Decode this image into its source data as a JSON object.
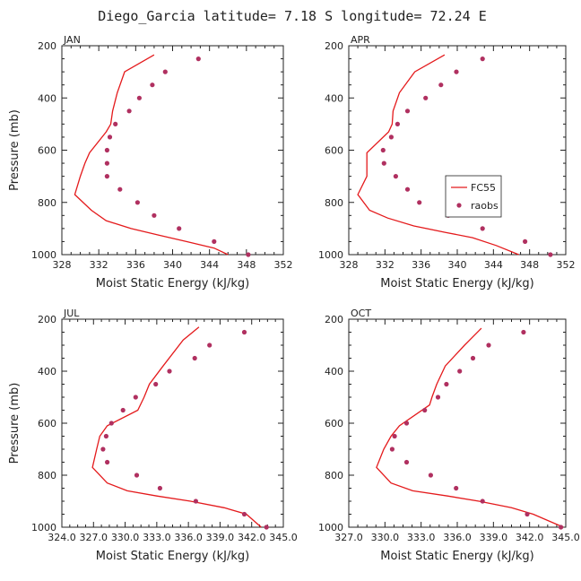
{
  "figure": {
    "title": "Diego_Garcia  latitude= 7.18 S longitude= 72.24 E",
    "xlabel": "Moist Static Energy (kJ/kg)",
    "ylabel": "Pressure (mb)",
    "colors": {
      "fc55": "#e41a1c",
      "raobs": "#b03060",
      "axis": "#222222"
    }
  },
  "legend": {
    "fc55": "FC55",
    "raobs": "raobs"
  },
  "chart_data": [
    {
      "type": "line",
      "month": "JAN",
      "xlim": [
        328,
        352
      ],
      "xticks": [
        328,
        332,
        336,
        340,
        344,
        348,
        352
      ],
      "xtick_labels": [
        "328",
        "332",
        "336",
        "340",
        "344",
        "348",
        "352"
      ],
      "ylim": [
        1000,
        200
      ],
      "yticks": [
        200,
        400,
        600,
        800,
        1000
      ],
      "series": [
        {
          "name": "FC55",
          "style": "line",
          "x": [
            338.0,
            334.8,
            334.0,
            333.5,
            333.3,
            332.8,
            331.0,
            330.5,
            330.0,
            329.4,
            331.2,
            332.8,
            335.5,
            338.5,
            341.5,
            344.5,
            346.0
          ],
          "y": [
            235,
            300,
            380,
            450,
            500,
            530,
            610,
            650,
            700,
            770,
            830,
            870,
            900,
            925,
            950,
            975,
            1000
          ]
        },
        {
          "name": "raobs",
          "style": "marker",
          "x": [
            342.8,
            339.2,
            337.8,
            336.4,
            335.3,
            333.8,
            333.2,
            332.9,
            332.9,
            332.9,
            334.3,
            336.2,
            338.0,
            340.7,
            344.5,
            348.2
          ],
          "y": [
            250,
            300,
            350,
            400,
            450,
            500,
            550,
            600,
            650,
            700,
            750,
            800,
            850,
            900,
            950,
            1000
          ]
        }
      ]
    },
    {
      "type": "line",
      "month": "APR",
      "show_legend": true,
      "xlim": [
        328,
        352
      ],
      "xticks": [
        328,
        332,
        336,
        340,
        344,
        348,
        352
      ],
      "xtick_labels": [
        "328",
        "332",
        "336",
        "340",
        "344",
        "348",
        "352"
      ],
      "ylim": [
        1000,
        200
      ],
      "yticks": [
        200,
        400,
        600,
        800,
        1000
      ],
      "series": [
        {
          "name": "FC55",
          "style": "line",
          "x": [
            338.6,
            335.3,
            333.6,
            332.9,
            332.8,
            332.4,
            330.0,
            330.0,
            330.0,
            329.0,
            330.3,
            332.3,
            335.2,
            338.7,
            341.7,
            344.3,
            346.8
          ],
          "y": [
            235,
            300,
            380,
            450,
            500,
            530,
            610,
            650,
            700,
            770,
            830,
            860,
            890,
            915,
            935,
            965,
            1000
          ]
        },
        {
          "name": "raobs",
          "style": "marker",
          "x": [
            342.8,
            339.9,
            338.2,
            336.5,
            334.5,
            333.4,
            332.7,
            331.8,
            331.9,
            333.2,
            334.5,
            335.8,
            339.0,
            342.8,
            347.5,
            350.3
          ],
          "y": [
            250,
            300,
            350,
            400,
            450,
            500,
            550,
            600,
            650,
            700,
            750,
            800,
            850,
            900,
            950,
            1000
          ]
        }
      ]
    },
    {
      "type": "line",
      "month": "JUL",
      "xlim": [
        324,
        345
      ],
      "xticks": [
        324,
        327,
        330,
        333,
        336,
        339,
        342,
        345
      ],
      "xtick_labels": [
        "324.0",
        "327.0",
        "330.0",
        "333.0",
        "336.0",
        "339.0",
        "342.0",
        "345.0"
      ],
      "ylim": [
        1000,
        200
      ],
      "yticks": [
        200,
        400,
        600,
        800,
        1000
      ],
      "series": [
        {
          "name": "FC55",
          "style": "line",
          "x": [
            337.0,
            335.5,
            333.6,
            332.3,
            331.8,
            331.2,
            328.3,
            327.6,
            327.3,
            326.9,
            328.3,
            330.2,
            333.0,
            336.2,
            339.4,
            341.5,
            342.9
          ],
          "y": [
            230,
            280,
            380,
            450,
            500,
            550,
            610,
            650,
            700,
            770,
            830,
            860,
            880,
            900,
            925,
            950,
            1000
          ]
        },
        {
          "name": "raobs",
          "style": "marker",
          "x": [
            341.3,
            338.0,
            336.6,
            334.2,
            332.9,
            331.0,
            329.8,
            328.7,
            328.2,
            327.9,
            328.3,
            331.1,
            333.3,
            336.7,
            341.3,
            343.4
          ],
          "y": [
            250,
            300,
            350,
            400,
            450,
            500,
            550,
            600,
            650,
            700,
            750,
            800,
            850,
            900,
            950,
            1000
          ]
        }
      ]
    },
    {
      "type": "line",
      "month": "OCT",
      "xlim": [
        327,
        345
      ],
      "xticks": [
        327,
        330,
        333,
        336,
        339,
        342,
        345
      ],
      "xtick_labels": [
        "327.0",
        "330.0",
        "333.0",
        "336.0",
        "339.0",
        "342.0",
        "345.0"
      ],
      "ylim": [
        1000,
        200
      ],
      "yticks": [
        200,
        400,
        600,
        800,
        1000
      ],
      "series": [
        {
          "name": "FC55",
          "style": "line",
          "x": [
            338.0,
            336.6,
            335.0,
            334.3,
            333.9,
            333.7,
            331.2,
            330.5,
            329.9,
            329.3,
            330.5,
            332.3,
            335.2,
            337.8,
            340.5,
            342.3,
            344.8
          ],
          "y": [
            235,
            300,
            380,
            450,
            500,
            530,
            610,
            650,
            700,
            770,
            830,
            860,
            880,
            900,
            925,
            950,
            1000
          ]
        },
        {
          "name": "raobs",
          "style": "marker",
          "x": [
            341.5,
            338.6,
            337.3,
            336.2,
            335.1,
            334.4,
            333.3,
            331.8,
            330.8,
            330.6,
            331.8,
            333.8,
            335.9,
            338.1,
            341.8,
            344.6
          ],
          "y": [
            250,
            300,
            350,
            400,
            450,
            500,
            550,
            600,
            650,
            700,
            750,
            800,
            850,
            900,
            950,
            1000
          ]
        }
      ]
    }
  ]
}
